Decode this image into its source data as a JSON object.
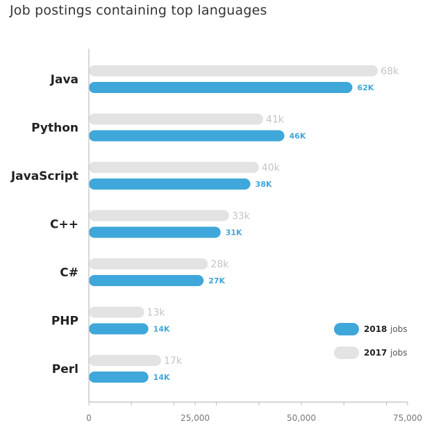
{
  "chart_data": {
    "type": "bar",
    "orientation": "horizontal",
    "title": "Job postings containing top languages",
    "categories": [
      "Java",
      "Python",
      "JavaScript",
      "C++",
      "C#",
      "PHP",
      "Perl"
    ],
    "series": [
      {
        "name": "2017",
        "values": [
          68000,
          41000,
          40000,
          33000,
          28000,
          13000,
          17000
        ],
        "labels": [
          "68k",
          "41k",
          "40k",
          "33k",
          "28k",
          "13k",
          "17k"
        ],
        "color": "#e3e3e3"
      },
      {
        "name": "2018",
        "values": [
          62000,
          46000,
          38000,
          31000,
          27000,
          14000,
          14000
        ],
        "labels": [
          "62K",
          "46K",
          "38K",
          "31K",
          "27K",
          "14K",
          "14K"
        ],
        "color": "#3fa7d9"
      }
    ],
    "xlim": [
      0,
      75000
    ],
    "xticks": [
      0,
      25000,
      50000,
      75000
    ],
    "xtick_labels": [
      "0",
      "25,000",
      "50,000",
      "75,000"
    ],
    "legend": {
      "position": "bottom-right",
      "items": [
        {
          "year": "2018",
          "word": "jobs",
          "color": "#3fa7d9"
        },
        {
          "year": "2017",
          "word": "jobs",
          "color": "#e3e3e3"
        }
      ]
    },
    "grid": false
  }
}
